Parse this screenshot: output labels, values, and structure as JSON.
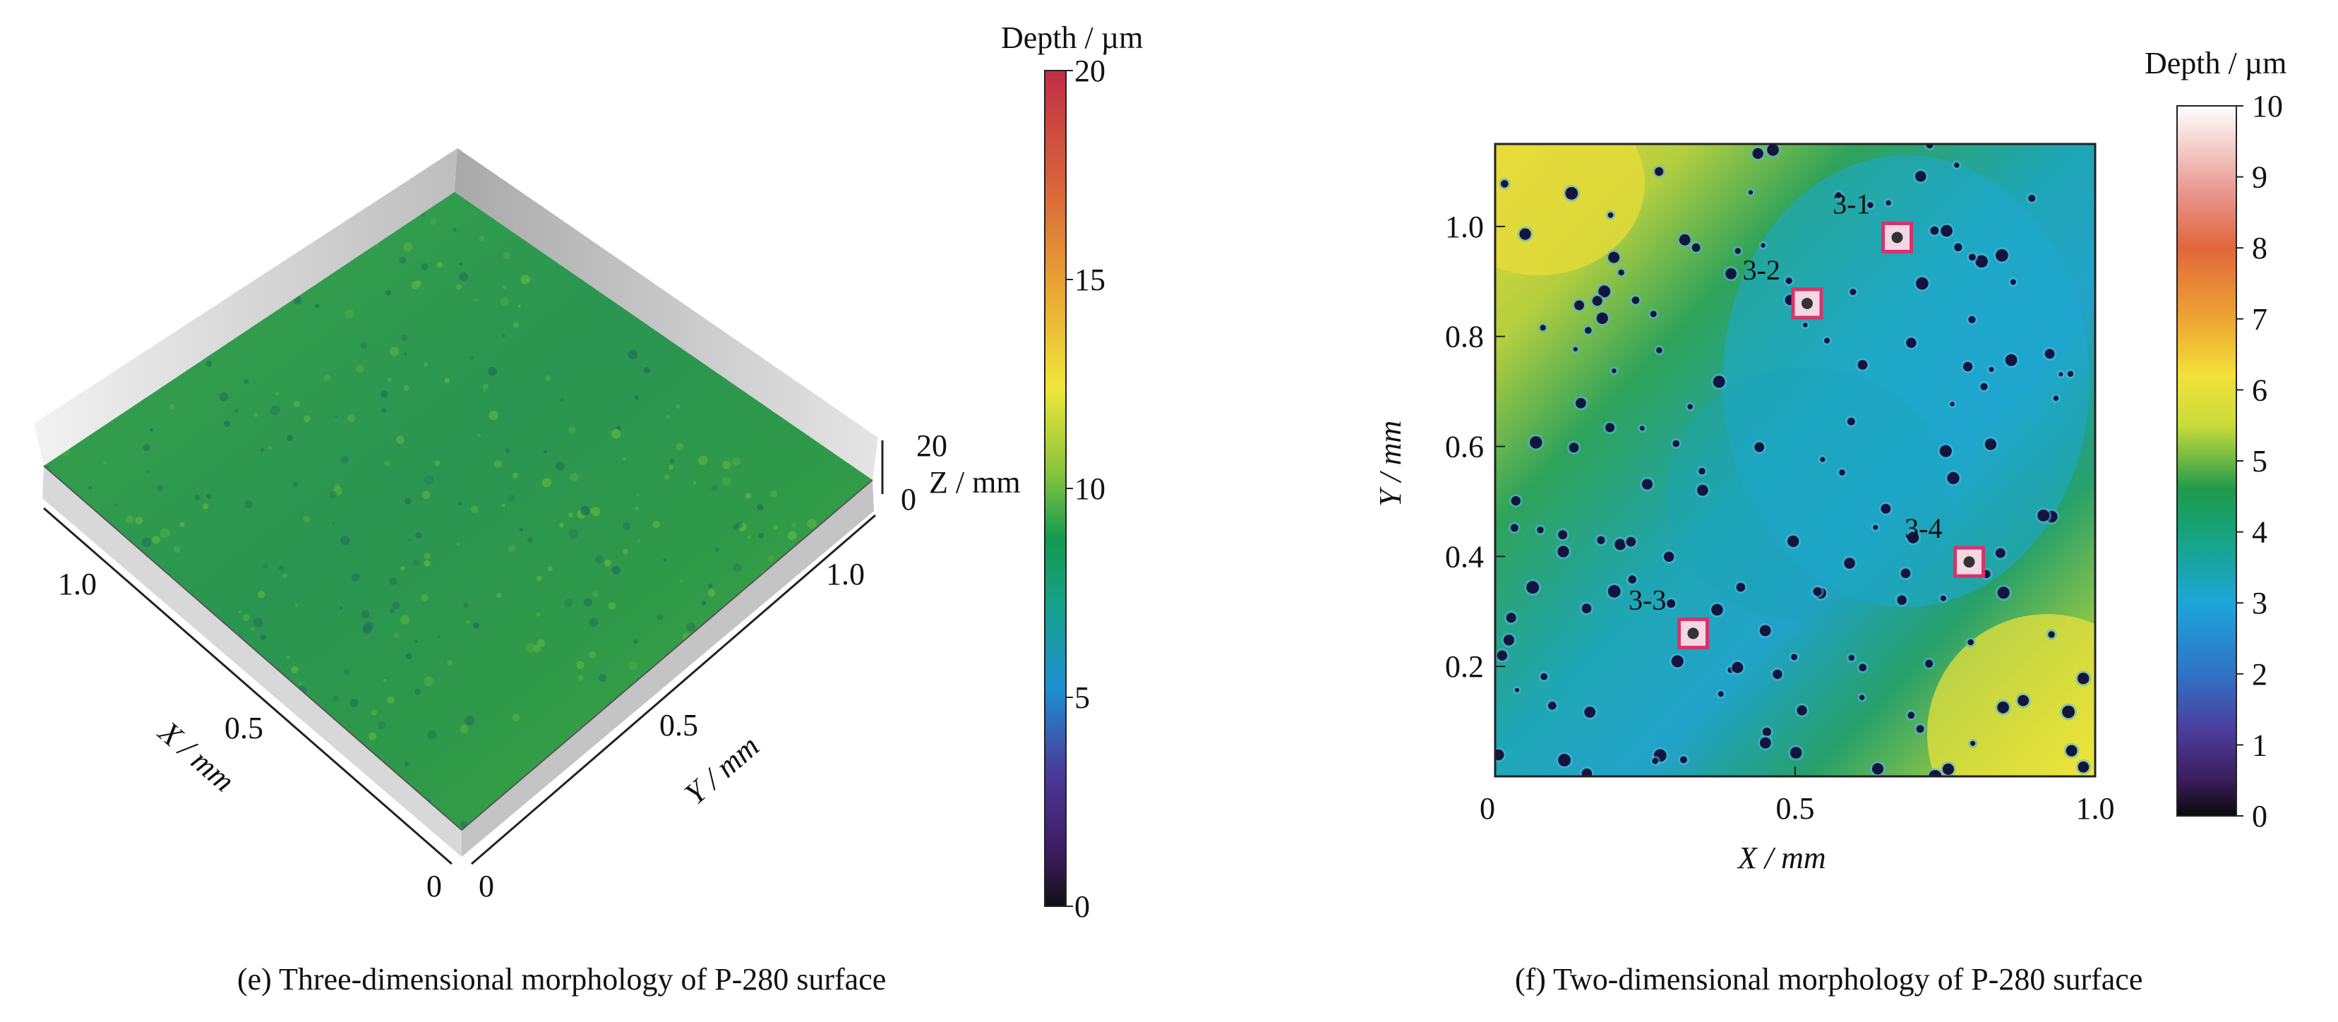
{
  "chart_data": [
    {
      "type": "heatmap",
      "caption": "(e) Three-dimensional morphology of P-280 surface",
      "colorbar": {
        "title": "Depth / µm",
        "range": [
          0,
          20
        ],
        "ticks": [
          "0",
          "5",
          "10",
          "15",
          "20"
        ]
      },
      "x_axis": {
        "label": "X / mm",
        "ticks": [
          "0",
          "0.5",
          "1.0"
        ]
      },
      "y_axis": {
        "label": "Y / mm",
        "ticks": [
          "0",
          "0.5",
          "1.0"
        ]
      },
      "z_axis": {
        "label": "Z / mm",
        "ticks": [
          "0",
          "20"
        ]
      },
      "colors": {
        "surface": "#2f9a45",
        "surface_light": "#3aa848",
        "surface_dark": "#1f7d50",
        "wall": "#c9c9c9"
      }
    },
    {
      "type": "heatmap",
      "caption": "(f) Two-dimensional morphology of P-280 surface",
      "colorbar": {
        "title": "Depth / µm",
        "range": [
          0,
          10
        ],
        "ticks": [
          "0",
          "1",
          "2",
          "3",
          "4",
          "5",
          "6",
          "7",
          "8",
          "9",
          "10"
        ]
      },
      "x_axis": {
        "label": "X / mm",
        "range": [
          0,
          1.0
        ],
        "ticks": [
          "0",
          "0.5",
          "1.0"
        ]
      },
      "y_axis": {
        "label": "Y / mm",
        "range": [
          0,
          1.15
        ],
        "ticks": [
          "0.2",
          "0.4",
          "0.6",
          "0.8",
          "1.0"
        ]
      },
      "markers": [
        {
          "label": "3-1",
          "x": 0.67,
          "y": 0.98
        },
        {
          "label": "3-2",
          "x": 0.52,
          "y": 0.86
        },
        {
          "label": "3-3",
          "x": 0.33,
          "y": 0.26
        },
        {
          "label": "3-4",
          "x": 0.79,
          "y": 0.39
        }
      ],
      "colors": {
        "marker": "#d6336c",
        "pore": "#14143c"
      }
    }
  ]
}
